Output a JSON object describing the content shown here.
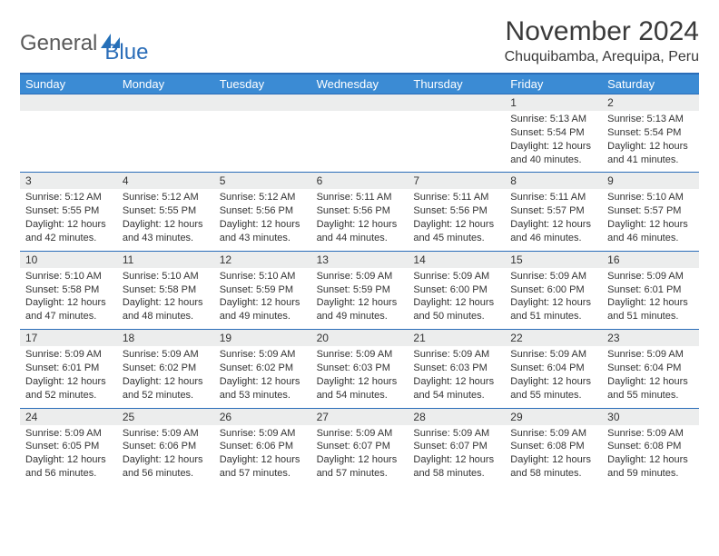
{
  "logo": {
    "part1": "General",
    "part2": "Blue"
  },
  "title": "November 2024",
  "location": "Chuquibamba, Arequipa, Peru",
  "colors": {
    "header_bg": "#3b8bd4",
    "border": "#2a6db8",
    "daynum_bg": "#eceded",
    "text": "#333333"
  },
  "dow": [
    "Sunday",
    "Monday",
    "Tuesday",
    "Wednesday",
    "Thursday",
    "Friday",
    "Saturday"
  ],
  "weeks": [
    [
      {
        "n": "",
        "lines": []
      },
      {
        "n": "",
        "lines": []
      },
      {
        "n": "",
        "lines": []
      },
      {
        "n": "",
        "lines": []
      },
      {
        "n": "",
        "lines": []
      },
      {
        "n": "1",
        "lines": [
          "Sunrise: 5:13 AM",
          "Sunset: 5:54 PM",
          "Daylight: 12 hours and 40 minutes."
        ]
      },
      {
        "n": "2",
        "lines": [
          "Sunrise: 5:13 AM",
          "Sunset: 5:54 PM",
          "Daylight: 12 hours and 41 minutes."
        ]
      }
    ],
    [
      {
        "n": "3",
        "lines": [
          "Sunrise: 5:12 AM",
          "Sunset: 5:55 PM",
          "Daylight: 12 hours and 42 minutes."
        ]
      },
      {
        "n": "4",
        "lines": [
          "Sunrise: 5:12 AM",
          "Sunset: 5:55 PM",
          "Daylight: 12 hours and 43 minutes."
        ]
      },
      {
        "n": "5",
        "lines": [
          "Sunrise: 5:12 AM",
          "Sunset: 5:56 PM",
          "Daylight: 12 hours and 43 minutes."
        ]
      },
      {
        "n": "6",
        "lines": [
          "Sunrise: 5:11 AM",
          "Sunset: 5:56 PM",
          "Daylight: 12 hours and 44 minutes."
        ]
      },
      {
        "n": "7",
        "lines": [
          "Sunrise: 5:11 AM",
          "Sunset: 5:56 PM",
          "Daylight: 12 hours and 45 minutes."
        ]
      },
      {
        "n": "8",
        "lines": [
          "Sunrise: 5:11 AM",
          "Sunset: 5:57 PM",
          "Daylight: 12 hours and 46 minutes."
        ]
      },
      {
        "n": "9",
        "lines": [
          "Sunrise: 5:10 AM",
          "Sunset: 5:57 PM",
          "Daylight: 12 hours and 46 minutes."
        ]
      }
    ],
    [
      {
        "n": "10",
        "lines": [
          "Sunrise: 5:10 AM",
          "Sunset: 5:58 PM",
          "Daylight: 12 hours and 47 minutes."
        ]
      },
      {
        "n": "11",
        "lines": [
          "Sunrise: 5:10 AM",
          "Sunset: 5:58 PM",
          "Daylight: 12 hours and 48 minutes."
        ]
      },
      {
        "n": "12",
        "lines": [
          "Sunrise: 5:10 AM",
          "Sunset: 5:59 PM",
          "Daylight: 12 hours and 49 minutes."
        ]
      },
      {
        "n": "13",
        "lines": [
          "Sunrise: 5:09 AM",
          "Sunset: 5:59 PM",
          "Daylight: 12 hours and 49 minutes."
        ]
      },
      {
        "n": "14",
        "lines": [
          "Sunrise: 5:09 AM",
          "Sunset: 6:00 PM",
          "Daylight: 12 hours and 50 minutes."
        ]
      },
      {
        "n": "15",
        "lines": [
          "Sunrise: 5:09 AM",
          "Sunset: 6:00 PM",
          "Daylight: 12 hours and 51 minutes."
        ]
      },
      {
        "n": "16",
        "lines": [
          "Sunrise: 5:09 AM",
          "Sunset: 6:01 PM",
          "Daylight: 12 hours and 51 minutes."
        ]
      }
    ],
    [
      {
        "n": "17",
        "lines": [
          "Sunrise: 5:09 AM",
          "Sunset: 6:01 PM",
          "Daylight: 12 hours and 52 minutes."
        ]
      },
      {
        "n": "18",
        "lines": [
          "Sunrise: 5:09 AM",
          "Sunset: 6:02 PM",
          "Daylight: 12 hours and 52 minutes."
        ]
      },
      {
        "n": "19",
        "lines": [
          "Sunrise: 5:09 AM",
          "Sunset: 6:02 PM",
          "Daylight: 12 hours and 53 minutes."
        ]
      },
      {
        "n": "20",
        "lines": [
          "Sunrise: 5:09 AM",
          "Sunset: 6:03 PM",
          "Daylight: 12 hours and 54 minutes."
        ]
      },
      {
        "n": "21",
        "lines": [
          "Sunrise: 5:09 AM",
          "Sunset: 6:03 PM",
          "Daylight: 12 hours and 54 minutes."
        ]
      },
      {
        "n": "22",
        "lines": [
          "Sunrise: 5:09 AM",
          "Sunset: 6:04 PM",
          "Daylight: 12 hours and 55 minutes."
        ]
      },
      {
        "n": "23",
        "lines": [
          "Sunrise: 5:09 AM",
          "Sunset: 6:04 PM",
          "Daylight: 12 hours and 55 minutes."
        ]
      }
    ],
    [
      {
        "n": "24",
        "lines": [
          "Sunrise: 5:09 AM",
          "Sunset: 6:05 PM",
          "Daylight: 12 hours and 56 minutes."
        ]
      },
      {
        "n": "25",
        "lines": [
          "Sunrise: 5:09 AM",
          "Sunset: 6:06 PM",
          "Daylight: 12 hours and 56 minutes."
        ]
      },
      {
        "n": "26",
        "lines": [
          "Sunrise: 5:09 AM",
          "Sunset: 6:06 PM",
          "Daylight: 12 hours and 57 minutes."
        ]
      },
      {
        "n": "27",
        "lines": [
          "Sunrise: 5:09 AM",
          "Sunset: 6:07 PM",
          "Daylight: 12 hours and 57 minutes."
        ]
      },
      {
        "n": "28",
        "lines": [
          "Sunrise: 5:09 AM",
          "Sunset: 6:07 PM",
          "Daylight: 12 hours and 58 minutes."
        ]
      },
      {
        "n": "29",
        "lines": [
          "Sunrise: 5:09 AM",
          "Sunset: 6:08 PM",
          "Daylight: 12 hours and 58 minutes."
        ]
      },
      {
        "n": "30",
        "lines": [
          "Sunrise: 5:09 AM",
          "Sunset: 6:08 PM",
          "Daylight: 12 hours and 59 minutes."
        ]
      }
    ]
  ]
}
